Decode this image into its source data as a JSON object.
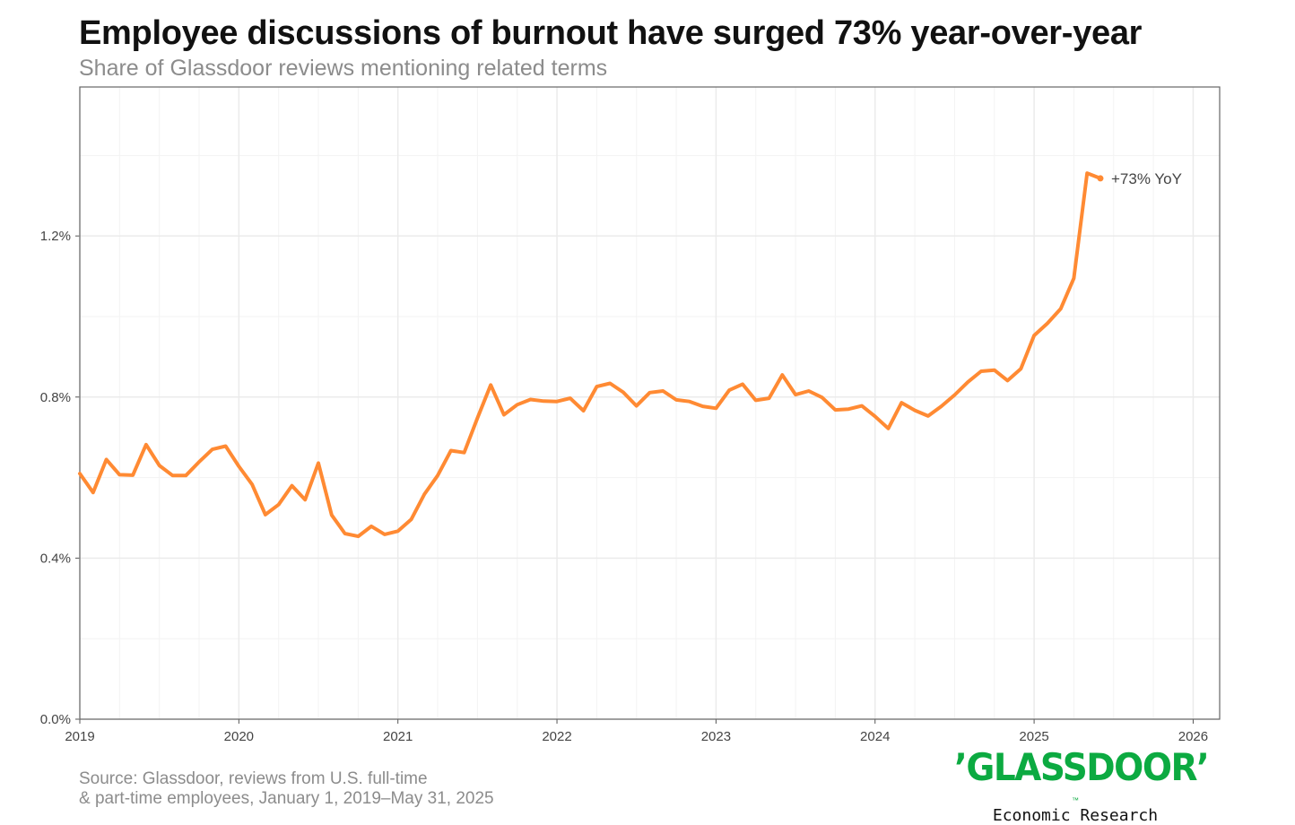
{
  "header": {
    "title": "Employee discussions of burnout have surged 73% year-over-year",
    "subtitle": "Share of Glassdoor reviews mentioning related terms"
  },
  "footer": {
    "source_line1": "Source: Glassdoor, reviews from U.S. full-time",
    "source_line2": "& part-time employees, January 1, 2019–May 31, 2025"
  },
  "logo": {
    "wordmark": "’GLASSDOOR’",
    "trademark": "™",
    "tagline": "Economic Research"
  },
  "colors": {
    "line": "#ff8a33",
    "grid": "#ebebeb",
    "logo_green": "#0caa41"
  },
  "chart_data": {
    "type": "line",
    "title": "Employee discussions of burnout have surged 73% year-over-year",
    "subtitle": "Share of Glassdoor reviews mentioning related terms",
    "xlabel": "",
    "ylabel": "",
    "x_ticks": [
      "2019",
      "2020",
      "2021",
      "2022",
      "2023",
      "2024",
      "2025",
      "2026"
    ],
    "y_ticks": [
      "0.0%",
      "0.4%",
      "0.8%",
      "1.2%"
    ],
    "y_tick_values": [
      0.0,
      0.4,
      0.8,
      1.2
    ],
    "xlim": [
      "2019-01",
      "2026-03"
    ],
    "ylim": [
      0.0,
      1.57
    ],
    "grid": true,
    "legend": "none",
    "series": [
      {
        "x": [
          "2019-01",
          "2019-02",
          "2019-03",
          "2019-04",
          "2019-05",
          "2019-06",
          "2019-07",
          "2019-08",
          "2019-09",
          "2019-10",
          "2019-11",
          "2019-12",
          "2020-01",
          "2020-02",
          "2020-03",
          "2020-04",
          "2020-05",
          "2020-06",
          "2020-07",
          "2020-08",
          "2020-09",
          "2020-10",
          "2020-11",
          "2020-12",
          "2021-01",
          "2021-02",
          "2021-03",
          "2021-04",
          "2021-05",
          "2021-06",
          "2021-07",
          "2021-08",
          "2021-09",
          "2021-10",
          "2021-11",
          "2021-12",
          "2022-01",
          "2022-02",
          "2022-03",
          "2022-04",
          "2022-05",
          "2022-06",
          "2022-07",
          "2022-08",
          "2022-09",
          "2022-10",
          "2022-11",
          "2022-12",
          "2023-01",
          "2023-02",
          "2023-03",
          "2023-04",
          "2023-05",
          "2023-06",
          "2023-07",
          "2023-08",
          "2023-09",
          "2023-10",
          "2023-11",
          "2023-12",
          "2024-01",
          "2024-02",
          "2024-03",
          "2024-04",
          "2024-05",
          "2024-06",
          "2024-07",
          "2024-08",
          "2024-09",
          "2024-10",
          "2024-11",
          "2024-12",
          "2025-01",
          "2025-02",
          "2025-03",
          "2025-04",
          "2025-05",
          "2025-06"
        ],
        "values": [
          0.61,
          0.563,
          0.645,
          0.607,
          0.606,
          0.682,
          0.63,
          0.605,
          0.605,
          0.639,
          0.67,
          0.678,
          0.628,
          0.583,
          0.508,
          0.533,
          0.58,
          0.545,
          0.636,
          0.507,
          0.461,
          0.454,
          0.479,
          0.459,
          0.467,
          0.496,
          0.559,
          0.605,
          0.667,
          0.662,
          0.748,
          0.83,
          0.756,
          0.781,
          0.794,
          0.79,
          0.789,
          0.797,
          0.766,
          0.826,
          0.834,
          0.812,
          0.778,
          0.811,
          0.815,
          0.793,
          0.789,
          0.777,
          0.772,
          0.817,
          0.832,
          0.792,
          0.797,
          0.855,
          0.806,
          0.815,
          0.799,
          0.768,
          0.77,
          0.778,
          0.752,
          0.722,
          0.786,
          0.767,
          0.753,
          0.777,
          0.805,
          0.837,
          0.864,
          0.867,
          0.841,
          0.87,
          0.953,
          0.983,
          1.019,
          1.095,
          1.356,
          1.343
        ]
      }
    ],
    "annotations": [
      {
        "text": "+73% YoY",
        "x": "2025-06",
        "y": 1.343
      }
    ]
  }
}
